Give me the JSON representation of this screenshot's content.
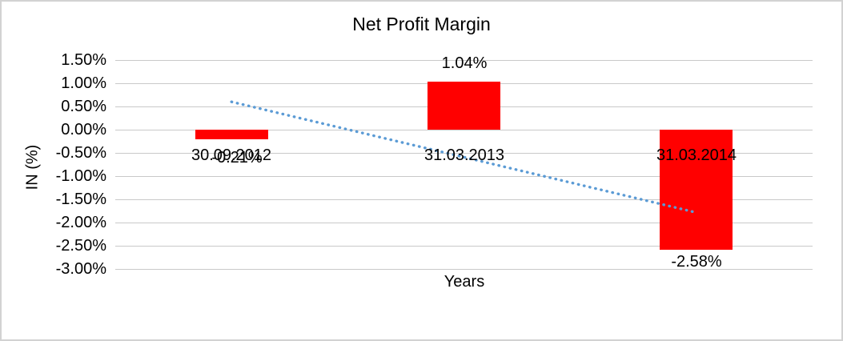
{
  "window": {
    "background": "#FFFFFF",
    "border_color": "#D2D2D2"
  },
  "chart_data": {
    "type": "bar",
    "title": "Net Profit Margin",
    "xlabel": "Years",
    "ylabel": "IN (%)",
    "categories": [
      "30.09.2012",
      "31.03.2013",
      "31.03.2014"
    ],
    "values": [
      -0.21,
      1.04,
      -2.58
    ],
    "data_labels": [
      "-0.21%",
      "1.04%",
      "-2.58%"
    ],
    "y_ticks": [
      {
        "value": 1.5,
        "label": "1.50%"
      },
      {
        "value": 1.0,
        "label": "1.00%"
      },
      {
        "value": 0.5,
        "label": "0.50%"
      },
      {
        "value": 0.0,
        "label": "0.00%"
      },
      {
        "value": -0.5,
        "label": "-0.50%"
      },
      {
        "value": -1.0,
        "label": "-1.00%"
      },
      {
        "value": -1.5,
        "label": "-1.50%"
      },
      {
        "value": -2.0,
        "label": "-2.00%"
      },
      {
        "value": -2.5,
        "label": "-2.50%"
      },
      {
        "value": -3.0,
        "label": "-3.00%"
      }
    ],
    "ylim": [
      -3.0,
      1.5
    ],
    "grid": true,
    "legend": "none",
    "bar_color": "#FF0000",
    "text_color": "#000000",
    "gridline_color": "#C9C9C9",
    "trendline": {
      "type": "linear",
      "style": "dotted",
      "color": "#5B9BD5",
      "start_value": 0.6,
      "end_value": -1.78
    }
  }
}
